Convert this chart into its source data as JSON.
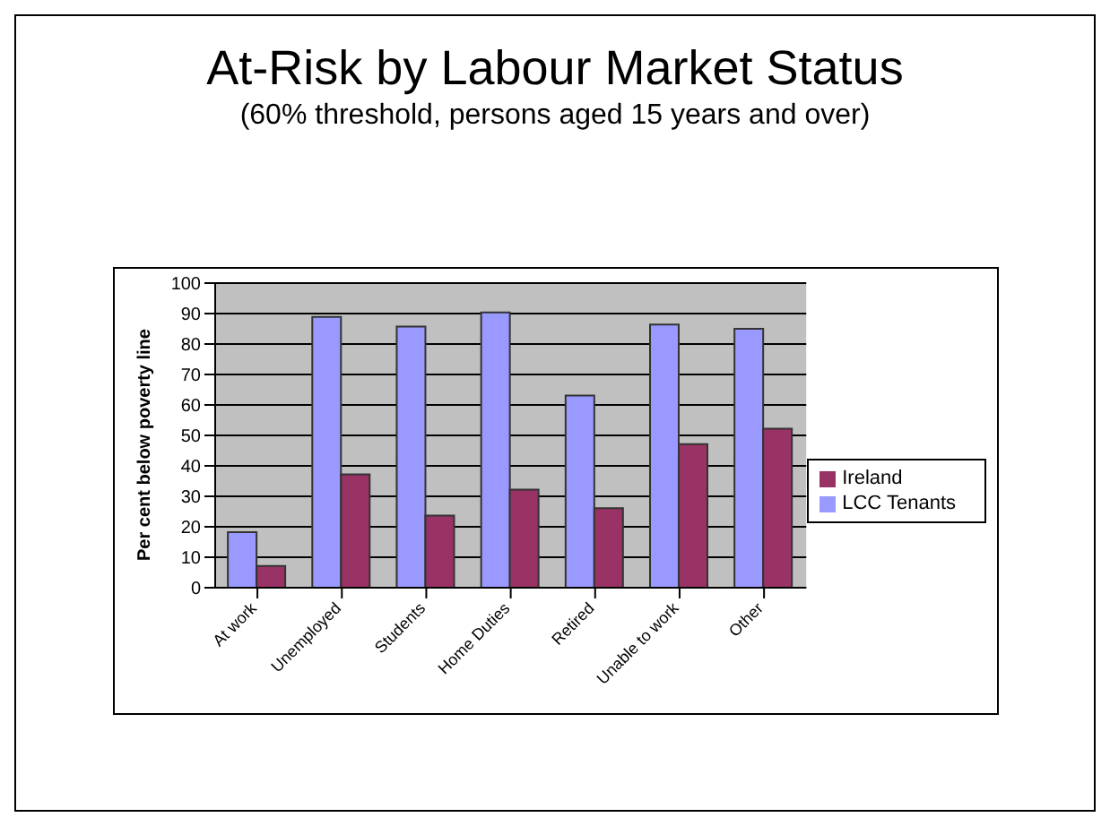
{
  "chart_data": {
    "type": "bar",
    "title": "At-Risk by Labour Market Status",
    "subtitle": "(60% threshold, persons aged 15 years and over)",
    "ylabel": "Per cent below poverty line",
    "categories": [
      "At work",
      "Unemployed",
      "Students",
      "Home Duties",
      "Retired",
      "Unable to work",
      "Other"
    ],
    "series": [
      {
        "name": "LCC Tenants",
        "color": "#9999ff",
        "values": [
          18.2,
          88.9,
          85.7,
          90.4,
          63.1,
          86.4,
          85
        ]
      },
      {
        "name": "Ireland",
        "color": "#993366",
        "values": [
          7.1,
          37.2,
          23.7,
          32.2,
          26.1,
          47.1,
          52.2
        ]
      }
    ],
    "ylim": [
      0,
      100
    ],
    "yticks": [
      0,
      10,
      20,
      30,
      40,
      50,
      60,
      70,
      80,
      90,
      100
    ],
    "grid": "y",
    "legend": "right"
  }
}
